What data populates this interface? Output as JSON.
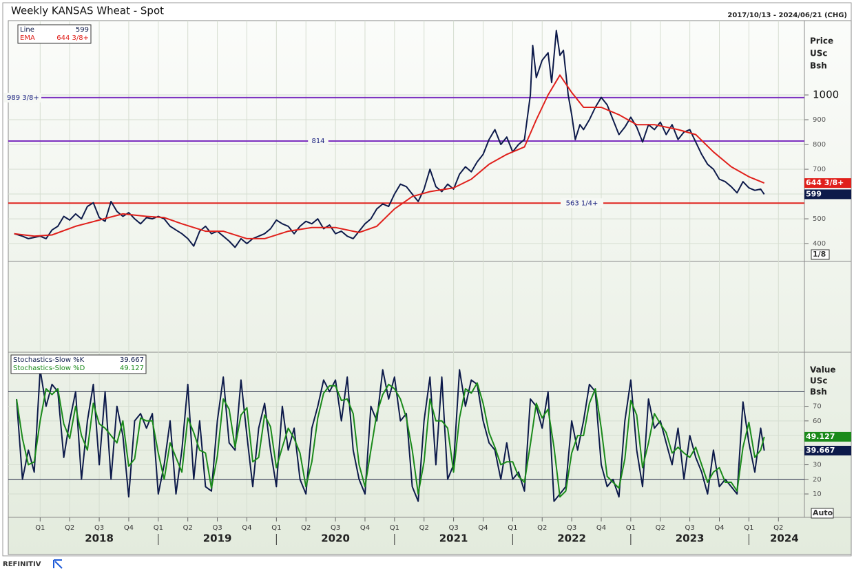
{
  "chart_data": [
    {
      "type": "line",
      "title": "Weekly KANSAS Wheat - Spot",
      "subtitle": "2017/10/13 - 2024/06/21 (CHG)",
      "y_label": [
        "Price",
        "USc",
        "Bsh"
      ],
      "scale_label": "1/8",
      "xlim": [
        2017.73,
        2024.47
      ],
      "ylim": [
        328,
        1300
      ],
      "yticks": [
        400,
        500,
        600,
        700,
        800,
        900,
        1000
      ],
      "grid": true,
      "hlines": [
        {
          "value": 989.375,
          "label": "989 3/8+",
          "color": "#7b2fbf"
        },
        {
          "value": 814,
          "label": "814",
          "color": "#7b2fbf"
        },
        {
          "value": 563.25,
          "label": "563 1/4+",
          "color": "#e0201b"
        }
      ],
      "series": [
        {
          "name": "Line",
          "value_label": "599",
          "color": "#0d1a4a",
          "x": [
            2017.78,
            2017.85,
            2017.9,
            2017.95,
            2018.0,
            2018.05,
            2018.1,
            2018.15,
            2018.2,
            2018.25,
            2018.3,
            2018.35,
            2018.4,
            2018.45,
            2018.5,
            2018.55,
            2018.6,
            2018.65,
            2018.7,
            2018.75,
            2018.8,
            2018.85,
            2018.9,
            2018.95,
            2019.0,
            2019.05,
            2019.1,
            2019.15,
            2019.2,
            2019.25,
            2019.3,
            2019.35,
            2019.4,
            2019.45,
            2019.5,
            2019.55,
            2019.6,
            2019.65,
            2019.7,
            2019.75,
            2019.8,
            2019.85,
            2019.9,
            2019.95,
            2020.0,
            2020.05,
            2020.1,
            2020.15,
            2020.2,
            2020.25,
            2020.3,
            2020.35,
            2020.4,
            2020.45,
            2020.5,
            2020.55,
            2020.6,
            2020.65,
            2020.7,
            2020.75,
            2020.8,
            2020.85,
            2020.9,
            2020.95,
            2021.0,
            2021.05,
            2021.1,
            2021.15,
            2021.2,
            2021.25,
            2021.3,
            2021.35,
            2021.4,
            2021.45,
            2021.5,
            2021.55,
            2021.6,
            2021.65,
            2021.7,
            2021.75,
            2021.8,
            2021.85,
            2021.9,
            2021.95,
            2022.0,
            2022.05,
            2022.1,
            2022.15,
            2022.17,
            2022.2,
            2022.25,
            2022.3,
            2022.33,
            2022.37,
            2022.4,
            2022.43,
            2022.47,
            2022.5,
            2022.53,
            2022.57,
            2022.6,
            2022.65,
            2022.7,
            2022.75,
            2022.8,
            2022.85,
            2022.9,
            2022.95,
            2023.0,
            2023.05,
            2023.1,
            2023.15,
            2023.2,
            2023.25,
            2023.3,
            2023.35,
            2023.4,
            2023.45,
            2023.5,
            2023.55,
            2023.6,
            2023.65,
            2023.7,
            2023.75,
            2023.8,
            2023.85,
            2023.9,
            2023.95,
            2024.0,
            2024.05,
            2024.1,
            2024.13
          ],
          "values": [
            440,
            430,
            420,
            425,
            430,
            420,
            455,
            470,
            510,
            495,
            520,
            500,
            550,
            565,
            505,
            490,
            570,
            530,
            510,
            525,
            500,
            480,
            505,
            500,
            510,
            500,
            470,
            455,
            440,
            420,
            390,
            450,
            470,
            440,
            450,
            430,
            410,
            385,
            420,
            400,
            420,
            430,
            440,
            460,
            495,
            480,
            470,
            440,
            470,
            490,
            480,
            500,
            460,
            475,
            440,
            450,
            430,
            420,
            450,
            480,
            500,
            540,
            560,
            550,
            600,
            640,
            630,
            600,
            570,
            620,
            700,
            630,
            610,
            640,
            620,
            680,
            710,
            690,
            730,
            760,
            820,
            860,
            800,
            830,
            770,
            800,
            820,
            1000,
            1200,
            1070,
            1140,
            1170,
            1050,
            1260,
            1160,
            1180,
            1000,
            920,
            820,
            880,
            860,
            900,
            950,
            990,
            960,
            900,
            840,
            870,
            910,
            870,
            810,
            880,
            860,
            890,
            840,
            880,
            820,
            850,
            860,
            810,
            760,
            720,
            700,
            660,
            650,
            630,
            605,
            650,
            625,
            615,
            620,
            599
          ]
        },
        {
          "name": "EMA",
          "value_label": "644 3/8+",
          "color": "#e0201b",
          "x": [
            2017.78,
            2017.95,
            2018.1,
            2018.3,
            2018.5,
            2018.7,
            2018.9,
            2019.05,
            2019.2,
            2019.4,
            2019.55,
            2019.75,
            2019.9,
            2020.1,
            2020.3,
            2020.5,
            2020.7,
            2020.85,
            2021.0,
            2021.15,
            2021.3,
            2021.5,
            2021.65,
            2021.8,
            2021.95,
            2022.1,
            2022.2,
            2022.3,
            2022.4,
            2022.5,
            2022.6,
            2022.75,
            2022.9,
            2023.05,
            2023.2,
            2023.4,
            2023.55,
            2023.7,
            2023.85,
            2024.0,
            2024.13
          ],
          "values": [
            440,
            430,
            435,
            470,
            495,
            520,
            510,
            505,
            480,
            450,
            450,
            420,
            420,
            450,
            465,
            465,
            445,
            470,
            540,
            590,
            610,
            625,
            660,
            720,
            760,
            790,
            900,
            1000,
            1080,
            1010,
            950,
            950,
            920,
            880,
            880,
            860,
            840,
            770,
            710,
            670,
            644.375
          ]
        }
      ]
    },
    {
      "type": "line",
      "y_label": [
        "Value",
        "USc",
        "Bsh"
      ],
      "scale_label": "Auto",
      "xlim": [
        2017.73,
        2024.47
      ],
      "ylim": [
        -6,
        107
      ],
      "yticks": [
        10,
        20,
        30,
        40,
        50,
        60,
        70
      ],
      "grid": true,
      "hlines": [
        {
          "value": 80,
          "color": "#1c2340"
        },
        {
          "value": 20,
          "color": "#1c2340"
        }
      ],
      "xticks": [
        {
          "value": 2018.0,
          "label": "Q1"
        },
        {
          "value": 2018.25,
          "label": "Q2"
        },
        {
          "value": 2018.5,
          "label": "Q3"
        },
        {
          "value": 2018.75,
          "label": "Q4"
        },
        {
          "value": 2019.0,
          "label": "Q1"
        },
        {
          "value": 2019.25,
          "label": "Q2"
        },
        {
          "value": 2019.5,
          "label": "Q3"
        },
        {
          "value": 2019.75,
          "label": "Q4"
        },
        {
          "value": 2020.0,
          "label": "Q1"
        },
        {
          "value": 2020.25,
          "label": "Q2"
        },
        {
          "value": 2020.5,
          "label": "Q3"
        },
        {
          "value": 2020.75,
          "label": "Q4"
        },
        {
          "value": 2021.0,
          "label": "Q1"
        },
        {
          "value": 2021.25,
          "label": "Q2"
        },
        {
          "value": 2021.5,
          "label": "Q3"
        },
        {
          "value": 2021.75,
          "label": "Q4"
        },
        {
          "value": 2022.0,
          "label": "Q1"
        },
        {
          "value": 2022.25,
          "label": "Q2"
        },
        {
          "value": 2022.5,
          "label": "Q3"
        },
        {
          "value": 2022.75,
          "label": "Q4"
        },
        {
          "value": 2023.0,
          "label": "Q1"
        },
        {
          "value": 2023.25,
          "label": "Q2"
        },
        {
          "value": 2023.5,
          "label": "Q3"
        },
        {
          "value": 2023.75,
          "label": "Q4"
        },
        {
          "value": 2024.0,
          "label": "Q1"
        },
        {
          "value": 2024.25,
          "label": "Q2"
        }
      ],
      "year_labels": [
        {
          "value": 2018.5,
          "label": "2018"
        },
        {
          "value": 2019.5,
          "label": "2019"
        },
        {
          "value": 2020.5,
          "label": "2020"
        },
        {
          "value": 2021.5,
          "label": "2021"
        },
        {
          "value": 2022.5,
          "label": "2022"
        },
        {
          "value": 2023.5,
          "label": "2023"
        },
        {
          "value": 2024.3,
          "label": "2024"
        }
      ],
      "x": [
        2017.8,
        2017.85,
        2017.9,
        2017.95,
        2018.0,
        2018.05,
        2018.1,
        2018.15,
        2018.2,
        2018.25,
        2018.3,
        2018.35,
        2018.4,
        2018.45,
        2018.5,
        2018.55,
        2018.6,
        2018.65,
        2018.7,
        2018.75,
        2018.8,
        2018.85,
        2018.9,
        2018.95,
        2019.0,
        2019.05,
        2019.1,
        2019.15,
        2019.2,
        2019.25,
        2019.3,
        2019.35,
        2019.4,
        2019.45,
        2019.5,
        2019.55,
        2019.6,
        2019.65,
        2019.7,
        2019.75,
        2019.8,
        2019.85,
        2019.9,
        2019.95,
        2020.0,
        2020.05,
        2020.1,
        2020.15,
        2020.2,
        2020.25,
        2020.3,
        2020.35,
        2020.4,
        2020.45,
        2020.5,
        2020.55,
        2020.6,
        2020.65,
        2020.7,
        2020.75,
        2020.8,
        2020.85,
        2020.9,
        2020.95,
        2021.0,
        2021.05,
        2021.1,
        2021.15,
        2021.2,
        2021.25,
        2021.3,
        2021.35,
        2021.4,
        2021.45,
        2021.5,
        2021.55,
        2021.6,
        2021.65,
        2021.7,
        2021.75,
        2021.8,
        2021.85,
        2021.9,
        2021.95,
        2022.0,
        2022.05,
        2022.1,
        2022.15,
        2022.2,
        2022.25,
        2022.3,
        2022.35,
        2022.4,
        2022.45,
        2022.5,
        2022.55,
        2022.6,
        2022.65,
        2022.7,
        2022.75,
        2022.8,
        2022.85,
        2022.9,
        2022.95,
        2023.0,
        2023.05,
        2023.1,
        2023.15,
        2023.2,
        2023.25,
        2023.3,
        2023.35,
        2023.4,
        2023.45,
        2023.5,
        2023.55,
        2023.6,
        2023.65,
        2023.7,
        2023.75,
        2023.8,
        2023.85,
        2023.9,
        2023.95,
        2024.0,
        2024.05,
        2024.1,
        2024.13
      ],
      "series": [
        {
          "name": "Stochastics-Slow %K",
          "value_label": "39.667",
          "color": "#0d1a4a",
          "values": [
            75,
            20,
            40,
            25,
            95,
            70,
            85,
            80,
            35,
            60,
            80,
            20,
            60,
            85,
            30,
            80,
            20,
            70,
            50,
            8,
            60,
            65,
            55,
            65,
            10,
            30,
            60,
            10,
            40,
            85,
            20,
            60,
            15,
            12,
            60,
            90,
            45,
            40,
            88,
            50,
            15,
            55,
            72,
            40,
            15,
            70,
            40,
            55,
            20,
            10,
            55,
            70,
            88,
            80,
            88,
            60,
            90,
            40,
            20,
            10,
            70,
            60,
            95,
            75,
            90,
            60,
            65,
            15,
            5,
            60,
            90,
            30,
            90,
            20,
            30,
            95,
            70,
            88,
            85,
            60,
            45,
            40,
            20,
            45,
            20,
            25,
            12,
            75,
            70,
            55,
            80,
            5,
            10,
            15,
            60,
            40,
            60,
            85,
            80,
            30,
            15,
            20,
            8,
            60,
            88,
            40,
            15,
            75,
            55,
            60,
            45,
            30,
            55,
            20,
            50,
            35,
            25,
            10,
            40,
            15,
            20,
            15,
            10,
            73,
            45,
            25,
            55,
            39.667
          ]
        },
        {
          "name": "Stochastics-Slow %D",
          "value_label": "49.127",
          "color": "#1a8a1a",
          "values": [
            75,
            48,
            30,
            32,
            60,
            82,
            78,
            82,
            58,
            48,
            70,
            50,
            40,
            72,
            58,
            55,
            50,
            45,
            60,
            29,
            34,
            62,
            60,
            60,
            38,
            20,
            45,
            35,
            25,
            62,
            52,
            40,
            38,
            14,
            36,
            75,
            68,
            42,
            64,
            69,
            32,
            35,
            64,
            56,
            28,
            42,
            55,
            48,
            38,
            15,
            32,
            62,
            79,
            84,
            84,
            74,
            75,
            65,
            30,
            15,
            40,
            65,
            78,
            85,
            82,
            75,
            62,
            40,
            10,
            32,
            75,
            60,
            60,
            55,
            25,
            62,
            82,
            79,
            86,
            72,
            52,
            42,
            30,
            32,
            32,
            22,
            18,
            44,
            72,
            62,
            68,
            42,
            8,
            12,
            38,
            50,
            50,
            72,
            82,
            55,
            22,
            18,
            14,
            34,
            74,
            64,
            28,
            45,
            65,
            58,
            52,
            38,
            42,
            38,
            35,
            42,
            30,
            18,
            25,
            28,
            18,
            18,
            12,
            42,
            59,
            35,
            40,
            49.127
          ]
        }
      ]
    }
  ],
  "footer": {
    "brand": "REFINITIV"
  }
}
